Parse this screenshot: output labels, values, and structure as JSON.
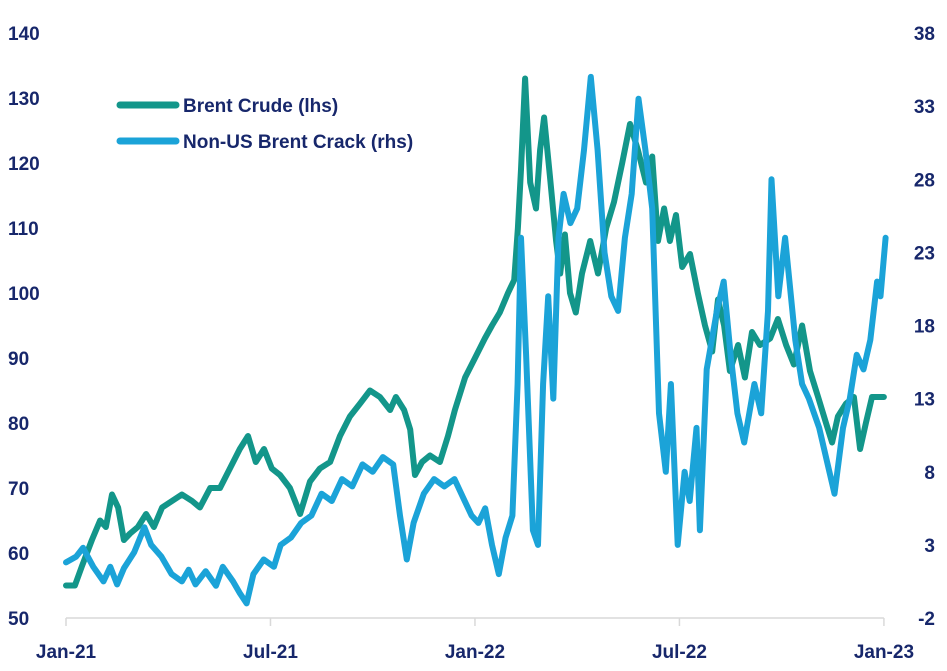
{
  "chart_data": {
    "type": "line",
    "title": "",
    "x_unit": "months since Jan-21",
    "x_ticks": [
      {
        "m": 0,
        "label": "Jan-21"
      },
      {
        "m": 6,
        "label": "Jul-21"
      },
      {
        "m": 12,
        "label": "Jan-22"
      },
      {
        "m": 18,
        "label": "Jul-22"
      },
      {
        "m": 24,
        "label": "Jan-23"
      }
    ],
    "y_left": {
      "lim": [
        50,
        140
      ],
      "ticks": [
        "50",
        "60",
        "70",
        "80",
        "90",
        "100",
        "110",
        "120",
        "130",
        "140"
      ]
    },
    "y_right": {
      "lim": [
        -2,
        38
      ],
      "ticks": [
        "-2",
        "3",
        "8",
        "13",
        "18",
        "23",
        "28",
        "33",
        "38"
      ]
    },
    "legend_position": "top-left",
    "series": [
      {
        "name": "Brent Crude (lhs)",
        "axis": "left",
        "color": "#13968a",
        "points": [
          [
            0,
            55
          ],
          [
            0.26,
            55
          ],
          [
            0.47,
            58
          ],
          [
            0.76,
            62
          ],
          [
            1.0,
            65
          ],
          [
            1.17,
            64
          ],
          [
            1.35,
            69
          ],
          [
            1.53,
            67
          ],
          [
            1.7,
            62
          ],
          [
            1.88,
            63
          ],
          [
            2.11,
            64
          ],
          [
            2.35,
            66
          ],
          [
            2.58,
            64
          ],
          [
            2.82,
            67
          ],
          [
            3.11,
            68
          ],
          [
            3.4,
            69
          ],
          [
            3.7,
            68
          ],
          [
            3.93,
            67
          ],
          [
            4.23,
            70
          ],
          [
            4.52,
            70
          ],
          [
            4.81,
            73
          ],
          [
            5.1,
            76
          ],
          [
            5.34,
            78
          ],
          [
            5.57,
            74
          ],
          [
            5.81,
            76
          ],
          [
            6.04,
            73
          ],
          [
            6.28,
            72
          ],
          [
            6.57,
            70
          ],
          [
            6.87,
            66
          ],
          [
            7.16,
            71
          ],
          [
            7.45,
            73
          ],
          [
            7.75,
            74
          ],
          [
            8.04,
            78
          ],
          [
            8.33,
            81
          ],
          [
            8.63,
            83
          ],
          [
            8.92,
            85
          ],
          [
            9.21,
            84
          ],
          [
            9.51,
            82
          ],
          [
            9.68,
            84
          ],
          [
            9.92,
            82
          ],
          [
            10.1,
            79
          ],
          [
            10.24,
            72
          ],
          [
            10.45,
            74
          ],
          [
            10.68,
            75
          ],
          [
            10.97,
            74
          ],
          [
            11.21,
            78
          ],
          [
            11.41,
            82
          ],
          [
            11.71,
            87
          ],
          [
            12.0,
            90
          ],
          [
            12.29,
            93
          ],
          [
            12.5,
            95
          ],
          [
            12.73,
            97
          ],
          [
            12.97,
            100
          ],
          [
            13.15,
            102
          ],
          [
            13.26,
            110
          ],
          [
            13.35,
            119
          ],
          [
            13.47,
            133
          ],
          [
            13.62,
            117
          ],
          [
            13.79,
            113
          ],
          [
            13.91,
            122
          ],
          [
            14.03,
            127
          ],
          [
            14.2,
            118
          ],
          [
            14.38,
            108
          ],
          [
            14.5,
            103
          ],
          [
            14.64,
            109
          ],
          [
            14.79,
            100
          ],
          [
            14.96,
            97
          ],
          [
            15.14,
            103
          ],
          [
            15.38,
            108
          ],
          [
            15.61,
            103
          ],
          [
            15.85,
            110
          ],
          [
            16.08,
            114
          ],
          [
            16.32,
            120
          ],
          [
            16.55,
            126
          ],
          [
            16.78,
            122
          ],
          [
            17.02,
            117
          ],
          [
            17.2,
            121
          ],
          [
            17.37,
            108
          ],
          [
            17.55,
            113
          ],
          [
            17.72,
            108
          ],
          [
            17.9,
            112
          ],
          [
            18.08,
            104
          ],
          [
            18.31,
            106
          ],
          [
            18.54,
            100
          ],
          [
            18.75,
            95
          ],
          [
            18.96,
            91
          ],
          [
            19.13,
            99
          ],
          [
            19.31,
            95
          ],
          [
            19.48,
            88
          ],
          [
            19.72,
            92
          ],
          [
            19.92,
            87
          ],
          [
            20.13,
            94
          ],
          [
            20.36,
            92
          ],
          [
            20.66,
            93
          ],
          [
            20.89,
            96
          ],
          [
            21.13,
            92
          ],
          [
            21.36,
            89
          ],
          [
            21.6,
            95
          ],
          [
            21.83,
            88
          ],
          [
            22.07,
            84
          ],
          [
            22.3,
            80
          ],
          [
            22.48,
            77
          ],
          [
            22.65,
            81
          ],
          [
            22.89,
            83
          ],
          [
            23.12,
            84
          ],
          [
            23.3,
            76
          ],
          [
            23.47,
            80
          ],
          [
            23.65,
            84
          ],
          [
            24,
            84
          ]
        ]
      },
      {
        "name": "Non-US Brent Crack (rhs)",
        "axis": "right",
        "color": "#1ba3d8",
        "points": [
          [
            0,
            1.8
          ],
          [
            0.3,
            2.2
          ],
          [
            0.5,
            2.8
          ],
          [
            0.8,
            1.5
          ],
          [
            1.1,
            0.5
          ],
          [
            1.3,
            1.5
          ],
          [
            1.5,
            0.3
          ],
          [
            1.7,
            1.4
          ],
          [
            2.0,
            2.5
          ],
          [
            2.3,
            4.2
          ],
          [
            2.5,
            3
          ],
          [
            2.8,
            2.2
          ],
          [
            3.1,
            1
          ],
          [
            3.4,
            0.5
          ],
          [
            3.6,
            1.3
          ],
          [
            3.8,
            0.3
          ],
          [
            4.1,
            1.2
          ],
          [
            4.4,
            0.2
          ],
          [
            4.6,
            1.5
          ],
          [
            4.9,
            0.5
          ],
          [
            5.1,
            -0.3
          ],
          [
            5.3,
            -1
          ],
          [
            5.5,
            1
          ],
          [
            5.8,
            2
          ],
          [
            6.1,
            1.5
          ],
          [
            6.3,
            3
          ],
          [
            6.6,
            3.5
          ],
          [
            6.9,
            4.5
          ],
          [
            7.2,
            5
          ],
          [
            7.5,
            6.5
          ],
          [
            7.8,
            6
          ],
          [
            8.1,
            7.5
          ],
          [
            8.4,
            7
          ],
          [
            8.7,
            8.5
          ],
          [
            9.0,
            8
          ],
          [
            9.3,
            9
          ],
          [
            9.6,
            8.5
          ],
          [
            9.8,
            5
          ],
          [
            10.0,
            2
          ],
          [
            10.2,
            4.5
          ],
          [
            10.5,
            6.5
          ],
          [
            10.8,
            7.5
          ],
          [
            11.1,
            7
          ],
          [
            11.4,
            7.5
          ],
          [
            11.7,
            6
          ],
          [
            11.9,
            5
          ],
          [
            12.1,
            4.5
          ],
          [
            12.3,
            5.5
          ],
          [
            12.5,
            3
          ],
          [
            12.7,
            1
          ],
          [
            12.9,
            3.5
          ],
          [
            13.1,
            5
          ],
          [
            13.25,
            14
          ],
          [
            13.35,
            24
          ],
          [
            13.5,
            16
          ],
          [
            13.7,
            4
          ],
          [
            13.85,
            3
          ],
          [
            14.0,
            14
          ],
          [
            14.15,
            20
          ],
          [
            14.3,
            13
          ],
          [
            14.45,
            24
          ],
          [
            14.6,
            27
          ],
          [
            14.8,
            25
          ],
          [
            15.0,
            26
          ],
          [
            15.2,
            30
          ],
          [
            15.4,
            35
          ],
          [
            15.6,
            30
          ],
          [
            15.8,
            23
          ],
          [
            16.0,
            20
          ],
          [
            16.2,
            19
          ],
          [
            16.4,
            24
          ],
          [
            16.6,
            27
          ],
          [
            16.8,
            33.5
          ],
          [
            17.0,
            30
          ],
          [
            17.2,
            26
          ],
          [
            17.4,
            12
          ],
          [
            17.6,
            8
          ],
          [
            17.75,
            14
          ],
          [
            17.95,
            3
          ],
          [
            18.15,
            8
          ],
          [
            18.3,
            6
          ],
          [
            18.5,
            11
          ],
          [
            18.6,
            4
          ],
          [
            18.8,
            15
          ],
          [
            19.1,
            19
          ],
          [
            19.3,
            21
          ],
          [
            19.5,
            16
          ],
          [
            19.7,
            12
          ],
          [
            19.9,
            10
          ],
          [
            20.2,
            14
          ],
          [
            20.4,
            12
          ],
          [
            20.6,
            19
          ],
          [
            20.7,
            28
          ],
          [
            20.9,
            20
          ],
          [
            21.1,
            24
          ],
          [
            21.4,
            17
          ],
          [
            21.6,
            14
          ],
          [
            21.8,
            13
          ],
          [
            22.1,
            11
          ],
          [
            22.4,
            8
          ],
          [
            22.55,
            6.5
          ],
          [
            22.8,
            11
          ],
          [
            23.0,
            13
          ],
          [
            23.2,
            16
          ],
          [
            23.4,
            15
          ],
          [
            23.6,
            17
          ],
          [
            23.8,
            21
          ],
          [
            23.9,
            20
          ],
          [
            24.05,
            24
          ]
        ]
      }
    ]
  }
}
